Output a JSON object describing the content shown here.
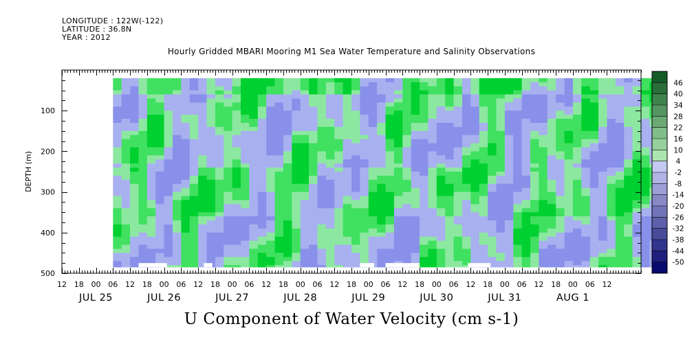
{
  "header": {
    "longitude": "LONGITUDE : 122W(-122)",
    "latitude": "LATITUDE : 36.8N",
    "year": "YEAR : 2012"
  },
  "chart_data": {
    "type": "heatmap",
    "title": "Hourly Gridded MBARI Mooring M1 Sea Water Temperature and Salinity Observations",
    "xlabel": "U Component of Water Velocity (cm s-1)",
    "ylabel": "DEPTH (m)",
    "ylim": [
      500,
      0
    ],
    "y_ticks": [
      100,
      200,
      300,
      400,
      500
    ],
    "y_tick_labels": [
      "100",
      "200",
      "300",
      "400",
      "500"
    ],
    "x_start_hour": 12,
    "x_hour_ticks": [
      "12",
      "18",
      "00",
      "06",
      "12",
      "18",
      "00",
      "06",
      "12",
      "18",
      "00",
      "06",
      "12",
      "18",
      "00",
      "06",
      "12",
      "18",
      "00",
      "06",
      "12",
      "18",
      "00",
      "06",
      "12",
      "18",
      "00",
      "06",
      "12",
      "18",
      "00",
      "06",
      "12"
    ],
    "x_day_labels": [
      "JUL 25",
      "JUL 26",
      "JUL 27",
      "JUL 28",
      "JUL 29",
      "JUL 30",
      "JUL 31",
      "AUG  1"
    ],
    "data_range_hours": [
      18,
      210
    ],
    "data_depth_range": [
      20,
      485
    ],
    "colorbar": {
      "levels": [
        "46",
        "40",
        "34",
        "28",
        "22",
        "16",
        "10",
        "4",
        "-2",
        "-8",
        "-14",
        "-20",
        "-26",
        "-32",
        "-38",
        "-44",
        "-50"
      ],
      "range": [
        -50,
        50
      ]
    },
    "gaps": [
      {
        "x0": 27,
        "x1": 37
      },
      {
        "x0": 50,
        "x1": 53
      },
      {
        "x0": 105,
        "x1": 110
      },
      {
        "x0": 114,
        "x1": 126
      },
      {
        "x0": 143,
        "x1": 151
      }
    ],
    "gap_depth": 475,
    "colors": {
      "strong_positive": "#00d030",
      "positive": "#40e060",
      "weak_positive": "#8ce8a0",
      "weak_negative": "#a8b0f0",
      "negative": "#8890ea"
    }
  }
}
